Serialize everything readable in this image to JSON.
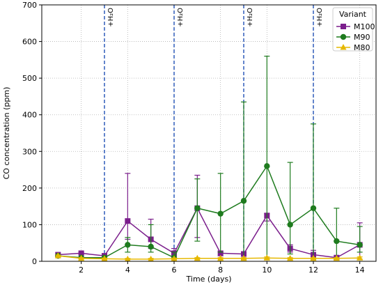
{
  "chart_data": {
    "type": "line",
    "title": "",
    "xlabel": "Time (days)",
    "ylabel": "CO concentration (ppm)",
    "xlim": [
      0.3,
      14.7
    ],
    "ylim": [
      0,
      700
    ],
    "xticks": [
      2,
      4,
      6,
      8,
      10,
      12,
      14
    ],
    "yticks": [
      0,
      100,
      200,
      300,
      400,
      500,
      600,
      700
    ],
    "grid": true,
    "legend": {
      "title": "Variant",
      "placement": "top-right"
    },
    "x": [
      1,
      2,
      3,
      4,
      5,
      6,
      7,
      8,
      9,
      10,
      11,
      12,
      13,
      14
    ],
    "series": [
      {
        "name": "M100",
        "color": "#7b1e8c",
        "marker": "square",
        "values": [
          18,
          22,
          15,
          110,
          60,
          22,
          145,
          22,
          20,
          125,
          35,
          18,
          10,
          45
        ],
        "err_low": [
          16,
          20,
          12,
          60,
          35,
          15,
          65,
          15,
          15,
          110,
          25,
          12,
          5,
          5
        ],
        "err_high": [
          18,
          24,
          18,
          240,
          115,
          35,
          235,
          28,
          25,
          130,
          45,
          30,
          15,
          105
        ]
      },
      {
        "name": "M90",
        "color": "#1e7b1e",
        "marker": "circle",
        "values": [
          15,
          10,
          10,
          45,
          40,
          10,
          145,
          130,
          165,
          260,
          100,
          145,
          55,
          45
        ],
        "err_low": [
          13,
          8,
          8,
          25,
          25,
          5,
          55,
          25,
          5,
          5,
          20,
          5,
          10,
          25
        ],
        "err_high": [
          17,
          12,
          12,
          65,
          100,
          25,
          225,
          240,
          435,
          560,
          270,
          375,
          145,
          95
        ]
      },
      {
        "name": "M80",
        "color": "#e6b800",
        "marker": "triangle",
        "values": [
          15,
          8,
          7,
          6,
          6,
          7,
          8,
          8,
          8,
          9,
          8,
          8,
          8,
          9
        ],
        "err_low": [
          13,
          6,
          5,
          5,
          5,
          5,
          6,
          6,
          6,
          6,
          6,
          6,
          6,
          6
        ],
        "err_high": [
          17,
          10,
          9,
          8,
          8,
          9,
          10,
          10,
          10,
          12,
          10,
          10,
          10,
          12
        ]
      }
    ],
    "annotations": [
      {
        "x": 3,
        "text": "+H₂O"
      },
      {
        "x": 6,
        "text": "+H₂O"
      },
      {
        "x": 9,
        "text": "+H₂O"
      },
      {
        "x": 12,
        "text": "+H₂O"
      }
    ]
  }
}
